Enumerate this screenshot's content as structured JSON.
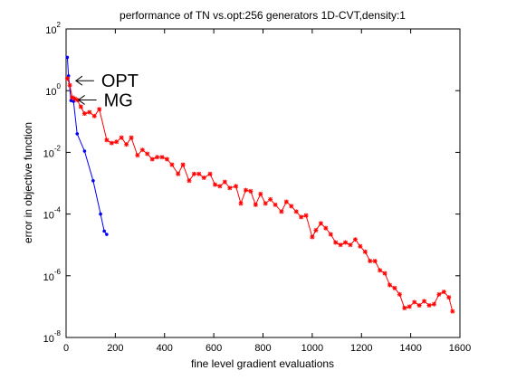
{
  "chart_data": {
    "type": "line",
    "title": "performance of TN vs.opt:256 generators 1D-CVT,density:1",
    "xlabel": "fine level gradient evaluations",
    "ylabel": "error in objective function",
    "xlim": [
      0,
      1600
    ],
    "ylim": [
      1e-08,
      100
    ],
    "yscale": "log",
    "grid": false,
    "x_ticks": [
      {
        "value": 0,
        "label": "0"
      },
      {
        "value": 200,
        "label": "200"
      },
      {
        "value": 400,
        "label": "400"
      },
      {
        "value": 600,
        "label": "600"
      },
      {
        "value": 800,
        "label": "800"
      },
      {
        "value": 1000,
        "label": "1000"
      },
      {
        "value": 1200,
        "label": "1200"
      },
      {
        "value": 1400,
        "label": "1400"
      },
      {
        "value": 1600,
        "label": "1600"
      }
    ],
    "y_ticks": [
      {
        "value": 100,
        "base": "10",
        "exp": "2"
      },
      {
        "value": 1,
        "base": "10",
        "exp": "0"
      },
      {
        "value": 0.01,
        "base": "10",
        "exp": "-2"
      },
      {
        "value": 0.0001,
        "base": "10",
        "exp": "-4"
      },
      {
        "value": 1e-06,
        "base": "10",
        "exp": "-6"
      },
      {
        "value": 1e-08,
        "base": "10",
        "exp": "-8"
      }
    ],
    "annotations": [
      {
        "text": "OPT",
        "x": 40,
        "y": 2.1
      },
      {
        "text": "MG",
        "x": 50,
        "y": 0.5
      }
    ],
    "series": [
      {
        "color": "#0000ff",
        "marker": "dot",
        "x": [
          5,
          10,
          20,
          30,
          45,
          75,
          110,
          140,
          155,
          165
        ],
        "y": [
          12,
          3,
          0.48,
          0.45,
          0.04,
          0.011,
          0.0012,
          0.0001,
          2.8e-05,
          2.2e-05
        ]
      },
      {
        "color": "#ff0000",
        "marker": "star",
        "x": [
          5,
          15,
          25,
          35,
          45,
          60,
          75,
          95,
          115,
          135,
          165,
          185,
          205,
          225,
          245,
          265,
          290,
          310,
          330,
          350,
          370,
          390,
          410,
          430,
          455,
          475,
          500,
          520,
          540,
          560,
          585,
          605,
          625,
          645,
          665,
          690,
          710,
          730,
          750,
          770,
          790,
          810,
          830,
          850,
          875,
          895,
          915,
          935,
          955,
          975,
          1000,
          1015,
          1035,
          1055,
          1075,
          1095,
          1115,
          1135,
          1155,
          1175,
          1195,
          1215,
          1235,
          1255,
          1275,
          1295,
          1315,
          1335,
          1355,
          1375,
          1395,
          1415,
          1435,
          1455,
          1475,
          1495,
          1515,
          1535,
          1555,
          1570
        ],
        "y": [
          2.5,
          1.5,
          0.6,
          0.55,
          0.5,
          0.3,
          0.18,
          0.2,
          0.15,
          0.25,
          0.025,
          0.02,
          0.022,
          0.03,
          0.018,
          0.03,
          0.008,
          0.012,
          0.009,
          0.006,
          0.007,
          0.007,
          0.006,
          0.004,
          0.002,
          0.004,
          0.0012,
          0.002,
          0.002,
          0.0015,
          0.002,
          0.0009,
          0.0008,
          0.0011,
          0.0007,
          0.0008,
          0.00022,
          0.0006,
          0.00055,
          0.0002,
          0.00045,
          0.00022,
          0.0003,
          0.0002,
          0.00012,
          0.00025,
          0.00018,
          0.00012,
          8e-05,
          9e-05,
          1.8e-05,
          3e-05,
          5e-05,
          3.5e-05,
          2.2e-05,
          1.2e-05,
          1e-05,
          1.2e-05,
          1e-05,
          1.5e-05,
          9e-06,
          6e-06,
          3e-06,
          3e-06,
          1.5e-06,
          1.2e-06,
          5e-07,
          4e-07,
          2.5e-07,
          9e-08,
          1e-07,
          1.4e-07,
          1.1e-07,
          1.5e-07,
          1.1e-07,
          1.2e-07,
          2.5e-07,
          3e-07,
          2e-07,
          7e-08
        ]
      }
    ]
  }
}
